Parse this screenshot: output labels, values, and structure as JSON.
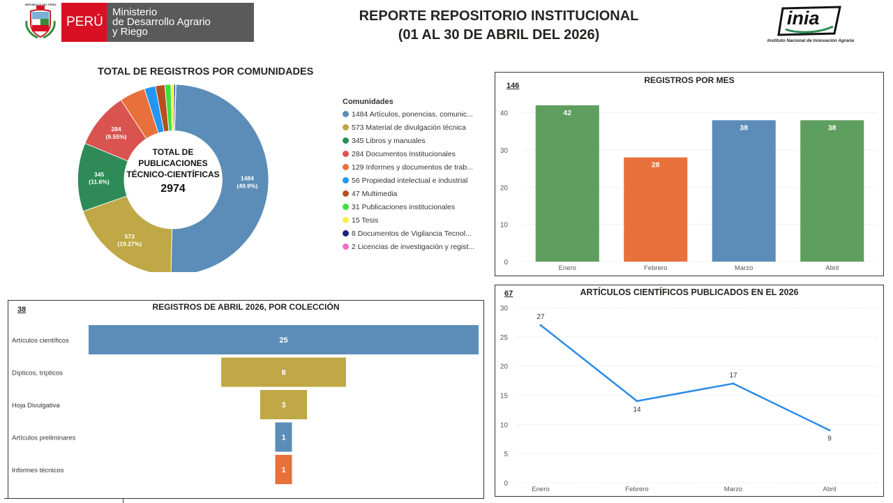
{
  "header": {
    "shield_text": "REPÚBLICA DEL PERÚ",
    "peru_label": "PERÚ",
    "ministry_line1": "Ministerio",
    "ministry_line2": "de Desarrollo Agrario",
    "ministry_line3": "y Riego",
    "title_line1": "REPORTE REPOSITORIO INSTITUCIONAL",
    "title_line2": "(01 AL 30 DE ABRIL DEL 2026)",
    "inia_logo": "inia",
    "inia_name": "Instituto Nacional de Innovación Agraria"
  },
  "colors": {
    "blue": "#5b8db8",
    "olive": "#bfa845",
    "green": "#2e8b57",
    "red": "#d9534f",
    "orange": "#e8703a",
    "bright_blue": "#2196f3",
    "brown": "#b5501f",
    "lime": "#3ee03e",
    "yellow": "#f2f24a",
    "navy": "#1a237e",
    "pink": "#f06ec8",
    "bar_green": "#5e9e5e",
    "line_blue": "#2b8be8",
    "peru_red": "#d91023",
    "ministry_gray": "#5a5a5a"
  },
  "chart_data": [
    {
      "type": "pie",
      "title": "TOTAL DE REGISTROS POR COMUNIDADES",
      "center_line1": "TOTAL DE",
      "center_line2": "PUBLICACIONES",
      "center_line3": "TÉCNICO-CIENTÍFICAS",
      "center_total": "2974",
      "legend_title": "Comunidades",
      "slices": [
        {
          "value": 1484,
          "label": "1484 Artículos, ponencias, comunic...",
          "data_label": "1484",
          "pct_label": "(49.9%)",
          "color": "#5b8db8"
        },
        {
          "value": 573,
          "label": "573 Material de divulgación técnica",
          "data_label": "573",
          "pct_label": "(19.27%)",
          "color": "#bfa845"
        },
        {
          "value": 345,
          "label": "345 Libros y manuales",
          "data_label": "345",
          "pct_label": "(11.6%)",
          "color": "#2e8b57"
        },
        {
          "value": 284,
          "label": "284 Documentos Institucionales",
          "data_label": "284",
          "pct_label": "(9.55%)",
          "color": "#d9534f"
        },
        {
          "value": 129,
          "label": "129 Informes y documentos de trab...",
          "data_label": "",
          "pct_label": "",
          "color": "#e8703a"
        },
        {
          "value": 56,
          "label": "56 Propiedad intelectual e industrial",
          "data_label": "",
          "pct_label": "",
          "color": "#2196f3"
        },
        {
          "value": 47,
          "label": "47 Multimedia",
          "data_label": "",
          "pct_label": "",
          "color": "#b5501f"
        },
        {
          "value": 31,
          "label": "31 Publicaciones institucionales",
          "data_label": "",
          "pct_label": "",
          "color": "#3ee03e"
        },
        {
          "value": 15,
          "label": "15 Tesis",
          "data_label": "",
          "pct_label": "",
          "color": "#f2f24a"
        },
        {
          "value": 8,
          "label": "8 Documentos de Vigilancia Tecnol...",
          "data_label": "",
          "pct_label": "",
          "color": "#1a237e"
        },
        {
          "value": 2,
          "label": "2 Licencias de investigación y regist...",
          "data_label": "",
          "pct_label": "",
          "color": "#f06ec8"
        }
      ],
      "legend": "right"
    },
    {
      "type": "bar",
      "title": "REGISTROS POR MES",
      "total_label": "146",
      "categories": [
        "Enero",
        "Febrero",
        "Marzo",
        "Abril"
      ],
      "values": [
        42,
        28,
        38,
        38
      ],
      "colors": [
        "#5e9e5e",
        "#e8703a",
        "#5b8db8",
        "#5e9e5e"
      ],
      "ylim": [
        0,
        45
      ],
      "yticks": [
        0,
        10,
        20,
        30,
        40
      ],
      "grid": true
    },
    {
      "type": "bar",
      "orientation": "horizontal-funnel",
      "title": "REGISTROS DE ABRIL 2026, POR COLECCIÓN",
      "total_label": "38",
      "categories": [
        "Artículos científicos",
        "Dípticos, trípticos",
        "Hoja Divulgativa",
        "Artículos preliminares",
        "Informes técnicos"
      ],
      "values": [
        25,
        8,
        3,
        1,
        1
      ],
      "colors": [
        "#5b8db8",
        "#bfa845",
        "#bfa845",
        "#5b8db8",
        "#e8703a"
      ]
    },
    {
      "type": "line",
      "title": "ARTÍCULOS CIENTÍFICOS PUBLICADOS EN EL 2026",
      "total_label": "67",
      "categories": [
        "Enero",
        "Febrero",
        "Marzo",
        "Abril"
      ],
      "values": [
        27,
        14,
        17,
        9
      ],
      "ylim": [
        0,
        30
      ],
      "yticks": [
        0,
        5,
        10,
        15,
        20,
        25,
        30
      ],
      "color": "#2b8be8",
      "grid": true
    }
  ]
}
